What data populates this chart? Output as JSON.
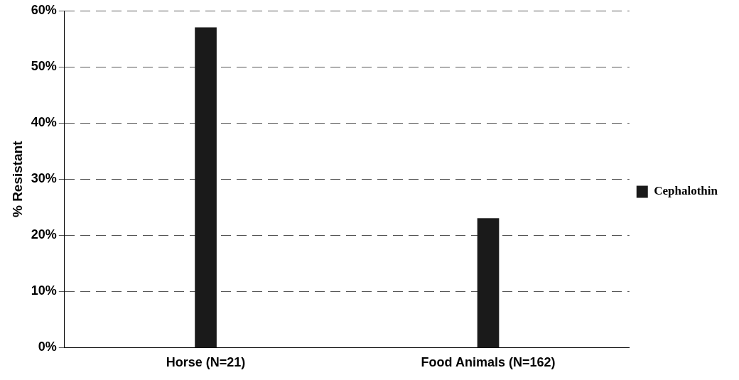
{
  "chart_data": {
    "type": "bar",
    "ylabel": "% Resistant",
    "categories": [
      "Horse (N=21)",
      "Food Animals (N=162)"
    ],
    "series": [
      {
        "name": "Cephalothin",
        "color": "#1a1a1a",
        "values": [
          57,
          23
        ]
      }
    ],
    "ylim": [
      0,
      60
    ],
    "yticks": [
      {
        "value": 0,
        "label": "0%"
      },
      {
        "value": 10,
        "label": "10%"
      },
      {
        "value": 20,
        "label": "20%"
      },
      {
        "value": 30,
        "label": "30%"
      },
      {
        "value": 40,
        "label": "40%"
      },
      {
        "value": 50,
        "label": "50%"
      },
      {
        "value": 60,
        "label": "60%"
      }
    ],
    "grid": "y",
    "line_style": "dashed",
    "legend": "right"
  }
}
